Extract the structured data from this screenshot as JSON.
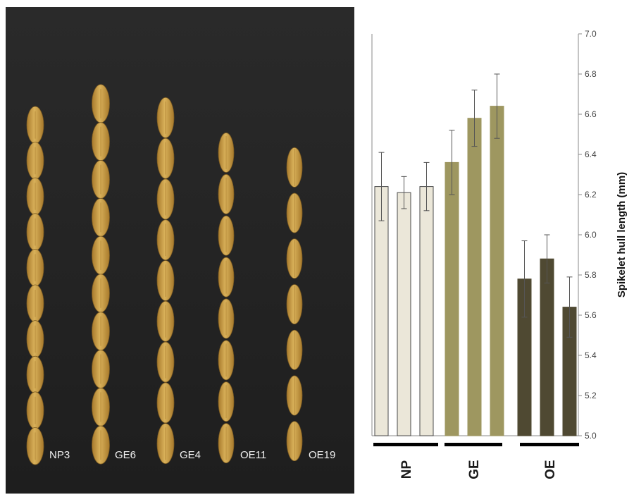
{
  "photo": {
    "strips": [
      {
        "label": "NP3",
        "grains": 10
      },
      {
        "label": "GE6",
        "grains": 10
      },
      {
        "label": "GE4",
        "grains": 9
      },
      {
        "label": "OE11",
        "grains": 8
      },
      {
        "label": "OE19",
        "grains": 7
      }
    ],
    "colors": {
      "background": "#232323",
      "grain": "#d9b15a",
      "grain_dark": "#a87a2c",
      "label": "#f2f2f2"
    }
  },
  "chart_data": {
    "type": "bar",
    "ylabel": "Spikelet hull length (mm)",
    "ylim": [
      5.0,
      7.0
    ],
    "yticks": [
      "5.0",
      "5.2",
      "5.4",
      "5.6",
      "5.8",
      "6.0",
      "6.2",
      "6.4",
      "6.6",
      "6.8",
      "7.0"
    ],
    "y_axis_side": "right",
    "groups": [
      {
        "label": "NP",
        "color": "#ebe7d9",
        "bars": [
          {
            "value": 6.24,
            "err": 0.17
          },
          {
            "value": 6.21,
            "err": 0.08
          },
          {
            "value": 6.24,
            "err": 0.12
          }
        ]
      },
      {
        "label": "GE",
        "color": "#9e9760",
        "bars": [
          {
            "value": 6.36,
            "err": 0.16
          },
          {
            "value": 6.58,
            "err": 0.14
          },
          {
            "value": 6.64,
            "err": 0.16
          }
        ]
      },
      {
        "label": "OE",
        "color": "#4f4932",
        "bars": [
          {
            "value": 5.78,
            "err": 0.19
          },
          {
            "value": 5.88,
            "err": 0.12
          },
          {
            "value": 5.64,
            "err": 0.15
          }
        ]
      }
    ]
  }
}
